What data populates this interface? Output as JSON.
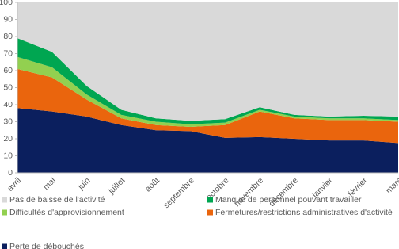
{
  "chart_data": {
    "type": "stacked-area",
    "categories": [
      "avril",
      "mai",
      "juin",
      "juillet",
      "août",
      "septembre",
      "octobre",
      "novembre",
      "décembre",
      "janvier",
      "février",
      "mars"
    ],
    "ylim": [
      0,
      100
    ],
    "yticks": [
      0,
      10,
      20,
      30,
      40,
      50,
      60,
      70,
      80,
      90,
      100
    ],
    "series": [
      {
        "name": "Perte de débouchés",
        "color": "#0b1f5e",
        "values": [
          38,
          36,
          33,
          28,
          25,
          24.5,
          20.5,
          21,
          20,
          19,
          19,
          17.5
        ]
      },
      {
        "name": "Fermetures/restrictions administratives d'activité",
        "color": "#ea650d",
        "values": [
          23,
          20,
          10,
          4,
          3,
          2.5,
          7.5,
          15,
          12,
          12,
          12,
          12.5
        ]
      },
      {
        "name": "Difficultés d'approvisionnement",
        "color": "#92d050",
        "values": [
          7,
          6,
          3,
          2,
          2,
          1.5,
          1.5,
          1,
          1,
          1,
          1,
          1
        ]
      },
      {
        "name": "Manque de personnel pouvant travailler",
        "color": "#00a651",
        "values": [
          11,
          9,
          5,
          3,
          2,
          2,
          2,
          1.5,
          1,
          1,
          1.5,
          2
        ]
      },
      {
        "name": "Pas de baisse de l'activité",
        "color": "#d9d9d9",
        "values": [
          21,
          29,
          49,
          63,
          68,
          69.5,
          68.5,
          61.5,
          66,
          67,
          66.5,
          67
        ]
      }
    ]
  }
}
